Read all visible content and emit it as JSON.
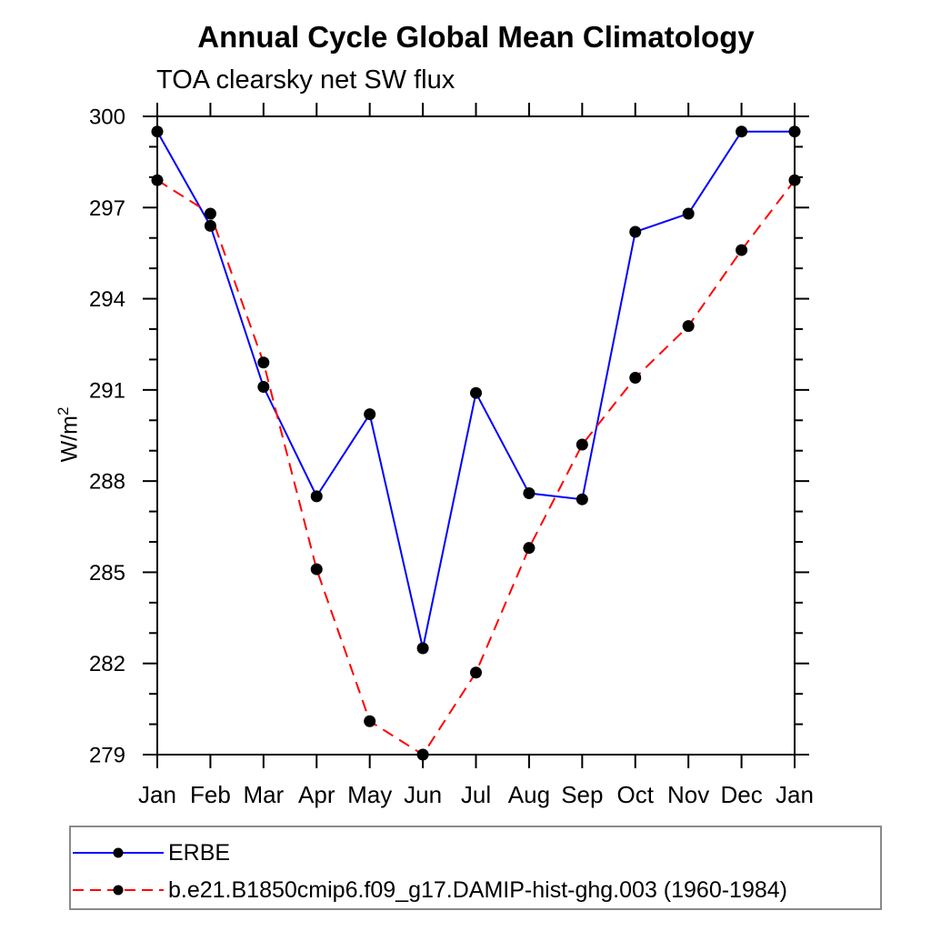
{
  "chart_data": {
    "type": "line",
    "title": "Annual Cycle Global Mean Climatology",
    "subtitle": "TOA clearsky net SW flux",
    "ylabel": "W/m²",
    "ylabel_base": "W/m",
    "ylabel_exponent": "2",
    "x_categories": [
      "Jan",
      "Feb",
      "Mar",
      "Apr",
      "May",
      "Jun",
      "Jul",
      "Aug",
      "Sep",
      "Oct",
      "Nov",
      "Dec",
      "Jan"
    ],
    "ylim": [
      279,
      300
    ],
    "ytick_major_step": 3,
    "ytick_minor_step": 1,
    "ytick_major_labels": [
      "279",
      "282",
      "285",
      "288",
      "291",
      "294",
      "297",
      "300"
    ],
    "grid": false,
    "axis_color": "#000000",
    "marker_color": "#000000",
    "legend_position": "bottom-left-box",
    "legend_border_color": "#8a8a8a",
    "series": [
      {
        "name": "ERBE",
        "color": "#0000ff",
        "line_style": "solid",
        "marker": "filled-circle",
        "values": [
          299.5,
          296.4,
          291.1,
          287.5,
          290.2,
          282.5,
          290.9,
          287.6,
          287.4,
          296.2,
          296.8,
          299.5,
          299.5
        ]
      },
      {
        "name": "b.e21.B1850cmip6.f09_g17.DAMIP-hist-ghg.003 (1960-1984)",
        "color": "#ff0000",
        "line_style": "dashed",
        "marker": "filled-circle",
        "values": [
          297.9,
          296.8,
          291.9,
          285.1,
          280.1,
          279.0,
          281.7,
          285.8,
          289.2,
          291.4,
          293.1,
          295.6,
          297.9
        ]
      }
    ]
  }
}
